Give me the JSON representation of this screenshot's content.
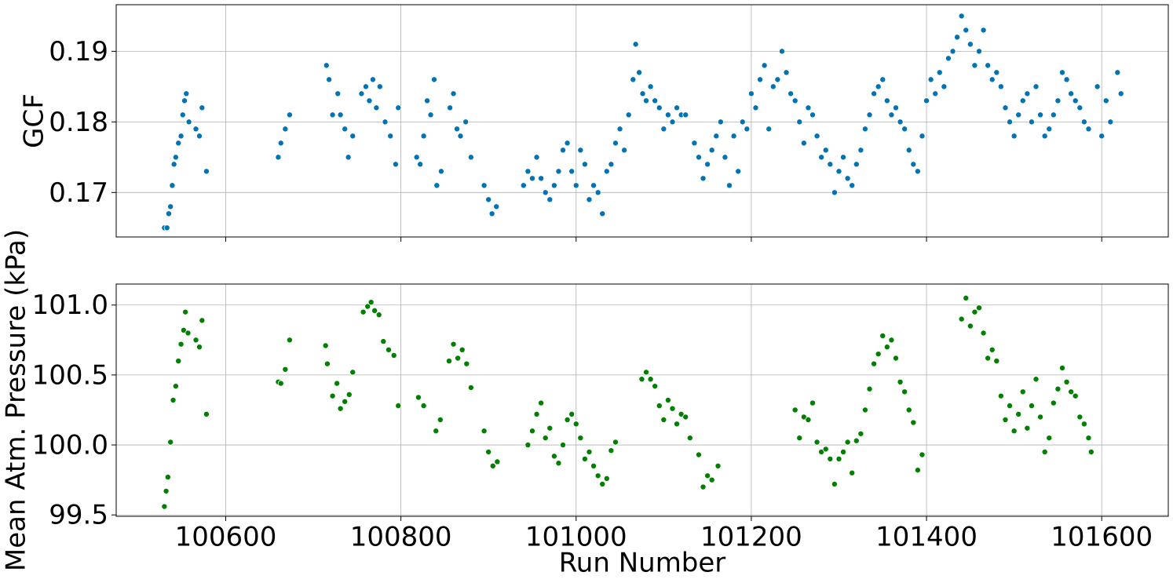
{
  "chart_data": [
    {
      "type": "scatter",
      "ylabel": "GCF",
      "color": "#0173b2",
      "grid": true,
      "xlim": [
        100475,
        101676
      ],
      "xticks": [
        100600,
        100800,
        101000,
        101200,
        101400,
        101600
      ],
      "ylim": [
        0.1637,
        0.1966
      ],
      "yticks": [
        0.17,
        0.18,
        0.19
      ],
      "x": [
        100530,
        100533,
        100535,
        100537,
        100539,
        100541,
        100543,
        100546,
        100549,
        100551,
        100553,
        100555,
        100558,
        100566,
        100570,
        100573,
        100578,
        100660,
        100663,
        100668,
        100673,
        100715,
        100718,
        100722,
        100728,
        100731,
        100736,
        100740,
        100745,
        100755,
        100760,
        100764,
        100768,
        100772,
        100776,
        100782,
        100788,
        100794,
        100797,
        100818,
        100822,
        100826,
        100830,
        100834,
        100838,
        100841,
        100846,
        100856,
        100860,
        100864,
        100868,
        100874,
        100880,
        100895,
        100900,
        100904,
        100909,
        100940,
        100945,
        100950,
        100955,
        100960,
        100965,
        100970,
        100975,
        100980,
        100985,
        100990,
        100995,
        101000,
        101005,
        101010,
        101015,
        101020,
        101025,
        101030,
        101035,
        101040,
        101045,
        101050,
        101055,
        101060,
        101065,
        101068,
        101072,
        101076,
        101080,
        101085,
        101090,
        101095,
        101100,
        101105,
        101110,
        101115,
        101120,
        101125,
        101135,
        101140,
        101145,
        101150,
        101155,
        101160,
        101165,
        101170,
        101175,
        101180,
        101185,
        101190,
        101195,
        101200,
        101205,
        101210,
        101215,
        101220,
        101225,
        101230,
        101235,
        101240,
        101245,
        101250,
        101255,
        101260,
        101265,
        101270,
        101275,
        101280,
        101285,
        101290,
        101295,
        101300,
        101305,
        101310,
        101315,
        101320,
        101325,
        101330,
        101335,
        101340,
        101345,
        101350,
        101355,
        101360,
        101365,
        101370,
        101375,
        101380,
        101385,
        101390,
        101395,
        101400,
        101405,
        101410,
        101415,
        101420,
        101425,
        101430,
        101435,
        101440,
        101445,
        101450,
        101455,
        101460,
        101465,
        101470,
        101475,
        101480,
        101485,
        101490,
        101495,
        101500,
        101505,
        101510,
        101515,
        101520,
        101525,
        101530,
        101535,
        101540,
        101545,
        101550,
        101555,
        101560,
        101565,
        101570,
        101575,
        101580,
        101585,
        101595,
        101600,
        101605,
        101610,
        101618,
        101622
      ],
      "values": [
        0.165,
        0.165,
        0.167,
        0.168,
        0.171,
        0.174,
        0.175,
        0.177,
        0.178,
        0.181,
        0.183,
        0.184,
        0.18,
        0.179,
        0.178,
        0.182,
        0.173,
        0.175,
        0.177,
        0.179,
        0.181,
        0.188,
        0.186,
        0.181,
        0.184,
        0.181,
        0.179,
        0.175,
        0.178,
        0.184,
        0.185,
        0.183,
        0.186,
        0.182,
        0.185,
        0.18,
        0.178,
        0.174,
        0.182,
        0.175,
        0.174,
        0.178,
        0.183,
        0.181,
        0.186,
        0.171,
        0.173,
        0.182,
        0.184,
        0.179,
        0.178,
        0.18,
        0.175,
        0.171,
        0.169,
        0.167,
        0.168,
        0.171,
        0.173,
        0.172,
        0.175,
        0.172,
        0.17,
        0.169,
        0.171,
        0.173,
        0.176,
        0.177,
        0.173,
        0.171,
        0.176,
        0.174,
        0.169,
        0.171,
        0.17,
        0.167,
        0.173,
        0.174,
        0.177,
        0.179,
        0.176,
        0.181,
        0.186,
        0.191,
        0.187,
        0.184,
        0.183,
        0.185,
        0.183,
        0.182,
        0.179,
        0.181,
        0.18,
        0.182,
        0.181,
        0.181,
        0.177,
        0.175,
        0.172,
        0.174,
        0.176,
        0.178,
        0.18,
        0.175,
        0.171,
        0.178,
        0.173,
        0.18,
        0.179,
        0.184,
        0.182,
        0.186,
        0.188,
        0.179,
        0.185,
        0.186,
        0.19,
        0.187,
        0.184,
        0.183,
        0.18,
        0.177,
        0.182,
        0.181,
        0.178,
        0.175,
        0.176,
        0.174,
        0.17,
        0.173,
        0.175,
        0.172,
        0.171,
        0.174,
        0.176,
        0.179,
        0.181,
        0.184,
        0.185,
        0.186,
        0.183,
        0.181,
        0.182,
        0.18,
        0.179,
        0.176,
        0.174,
        0.173,
        0.178,
        0.183,
        0.186,
        0.184,
        0.187,
        0.185,
        0.189,
        0.19,
        0.192,
        0.195,
        0.193,
        0.191,
        0.188,
        0.19,
        0.193,
        0.188,
        0.186,
        0.187,
        0.185,
        0.182,
        0.18,
        0.178,
        0.181,
        0.183,
        0.184,
        0.18,
        0.185,
        0.181,
        0.178,
        0.179,
        0.181,
        0.183,
        0.187,
        0.186,
        0.184,
        0.183,
        0.182,
        0.18,
        0.179,
        0.185,
        0.178,
        0.183,
        0.18,
        0.187,
        0.184
      ]
    },
    {
      "type": "scatter",
      "xlabel": "Run Number",
      "ylabel": "Mean Atm. Pressure (kPa)",
      "color": "#008000",
      "grid": true,
      "xlim": [
        100475,
        101676
      ],
      "xticks": [
        100600,
        100800,
        101000,
        101200,
        101400,
        101600
      ],
      "ylim": [
        99.49,
        101.15
      ],
      "yticks": [
        99.5,
        {
          "value": 100,
          "label": "100.0"
        },
        100.5,
        {
          "value": 101,
          "label": "101.0"
        }
      ],
      "x": [
        100530,
        100532,
        100534,
        100537,
        100540,
        100543,
        100546,
        100549,
        100552,
        100554,
        100557,
        100566,
        100570,
        100573,
        100578,
        100660,
        100663,
        100668,
        100673,
        100714,
        100716,
        100722,
        100727,
        100731,
        100736,
        100741,
        100745,
        100757,
        100762,
        100766,
        100770,
        100775,
        100780,
        100786,
        100792,
        100797,
        100820,
        100826,
        100840,
        100845,
        100855,
        100860,
        100865,
        100870,
        100875,
        100880,
        100895,
        100900,
        100905,
        100910,
        100945,
        100950,
        100955,
        100960,
        100965,
        100970,
        100975,
        100980,
        100985,
        100990,
        100995,
        101000,
        101005,
        101010,
        101015,
        101020,
        101025,
        101030,
        101035,
        101040,
        101045,
        101075,
        101080,
        101085,
        101090,
        101095,
        101100,
        101105,
        101110,
        101115,
        101120,
        101125,
        101130,
        101140,
        101145,
        101150,
        101155,
        101162,
        101250,
        101255,
        101260,
        101265,
        101270,
        101275,
        101280,
        101285,
        101290,
        101295,
        101300,
        101305,
        101310,
        101315,
        101320,
        101325,
        101330,
        101335,
        101340,
        101345,
        101350,
        101355,
        101360,
        101365,
        101370,
        101375,
        101380,
        101385,
        101390,
        101395,
        101440,
        101445,
        101450,
        101455,
        101460,
        101465,
        101470,
        101475,
        101480,
        101485,
        101490,
        101495,
        101500,
        101505,
        101510,
        101515,
        101520,
        101525,
        101530,
        101535,
        101540,
        101545,
        101550,
        101555,
        101560,
        101565,
        101570,
        101575,
        101580,
        101585,
        101588
      ],
      "values": [
        99.56,
        99.67,
        99.77,
        100.02,
        100.32,
        100.42,
        100.6,
        100.72,
        100.82,
        100.95,
        100.8,
        100.75,
        100.7,
        100.89,
        100.22,
        100.45,
        100.44,
        100.54,
        100.75,
        100.71,
        100.58,
        100.35,
        100.44,
        100.26,
        100.31,
        100.36,
        100.52,
        100.95,
        100.99,
        101.02,
        100.96,
        100.93,
        100.74,
        100.68,
        100.64,
        100.28,
        100.34,
        100.28,
        100.1,
        100.18,
        100.6,
        100.72,
        100.62,
        100.68,
        100.58,
        100.41,
        100.1,
        99.95,
        99.85,
        99.88,
        100.0,
        100.1,
        100.22,
        100.3,
        100.05,
        100.12,
        99.92,
        99.87,
        100.0,
        100.18,
        100.22,
        100.15,
        100.05,
        99.9,
        99.95,
        99.85,
        99.78,
        99.72,
        99.76,
        99.96,
        100.02,
        100.47,
        100.52,
        100.47,
        100.42,
        100.28,
        100.18,
        100.32,
        100.26,
        100.15,
        100.22,
        100.2,
        100.05,
        99.93,
        99.7,
        99.78,
        99.75,
        99.85,
        100.25,
        100.05,
        100.2,
        100.18,
        100.3,
        100.02,
        99.95,
        99.97,
        99.9,
        99.72,
        99.9,
        99.95,
        100.02,
        99.8,
        100.03,
        100.08,
        100.25,
        100.4,
        100.58,
        100.65,
        100.78,
        100.7,
        100.75,
        100.62,
        100.45,
        100.38,
        100.25,
        100.16,
        99.82,
        99.93,
        100.9,
        101.05,
        100.85,
        100.95,
        100.98,
        100.8,
        100.62,
        100.68,
        100.6,
        100.35,
        100.18,
        100.28,
        100.1,
        100.22,
        100.38,
        100.12,
        100.28,
        100.47,
        100.2,
        99.95,
        100.05,
        100.3,
        100.4,
        100.55,
        100.45,
        100.38,
        100.35,
        100.2,
        100.15,
        100.05,
        99.95
      ]
    }
  ]
}
